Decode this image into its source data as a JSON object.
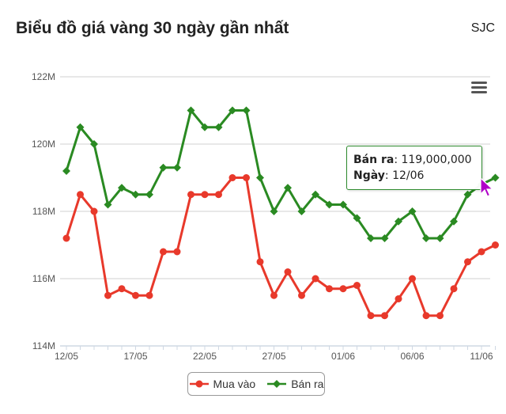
{
  "header": {
    "title": "Biểu đồ giá vàng 30 ngày gần nhất",
    "source": "SJC"
  },
  "tooltip": {
    "series_label": "Bán ra",
    "value": "119,000,000",
    "date_label": "Ngày",
    "date": "12/06"
  },
  "icons": {
    "menu": "hamburger-menu-icon",
    "cursor": "pointer-cursor-icon"
  },
  "chart_data": {
    "type": "line",
    "title": "Biểu đồ giá vàng 30 ngày gần nhất",
    "xlabel": "",
    "ylabel": "",
    "ylim": [
      114,
      122
    ],
    "y_ticks": [
      "114M",
      "116M",
      "118M",
      "120M",
      "122M"
    ],
    "y_tick_values": [
      114,
      116,
      118,
      120,
      122
    ],
    "x": [
      "12/05",
      "13/05",
      "14/05",
      "15/05",
      "16/05",
      "17/05",
      "18/05",
      "19/05",
      "20/05",
      "21/05",
      "22/05",
      "23/05",
      "24/05",
      "25/05",
      "26/05",
      "27/05",
      "28/05",
      "29/05",
      "30/05",
      "31/05",
      "01/06",
      "02/06",
      "03/06",
      "04/06",
      "05/06",
      "06/06",
      "07/06",
      "08/06",
      "09/06",
      "10/06",
      "11/06",
      "12/06"
    ],
    "x_tick_labels": [
      "12/05",
      "17/05",
      "22/05",
      "27/05",
      "01/06",
      "06/06",
      "11/06"
    ],
    "x_tick_indices": [
      0,
      5,
      10,
      15,
      20,
      25,
      30
    ],
    "grid": true,
    "legend": "bottom-center",
    "series": [
      {
        "name": "Mua vào",
        "color": "#e8392b",
        "marker": "circle",
        "values": [
          117.2,
          118.5,
          118.0,
          115.5,
          115.7,
          115.5,
          115.5,
          116.8,
          116.8,
          118.5,
          118.5,
          118.5,
          119.0,
          119.0,
          116.5,
          115.5,
          116.2,
          115.5,
          116.0,
          115.7,
          115.7,
          115.8,
          114.9,
          114.9,
          115.4,
          116.0,
          114.9,
          114.9,
          115.7,
          116.5,
          116.8,
          117.0
        ]
      },
      {
        "name": "Bán ra",
        "color": "#2a8a22",
        "marker": "diamond",
        "values": [
          119.2,
          120.5,
          120.0,
          118.2,
          118.7,
          118.5,
          118.5,
          119.3,
          119.3,
          121.0,
          120.5,
          120.5,
          121.0,
          121.0,
          119.0,
          118.0,
          118.7,
          118.0,
          118.5,
          118.2,
          118.2,
          117.8,
          117.2,
          117.2,
          117.7,
          118.0,
          117.2,
          117.2,
          117.7,
          118.5,
          118.8,
          119.0
        ]
      }
    ]
  }
}
